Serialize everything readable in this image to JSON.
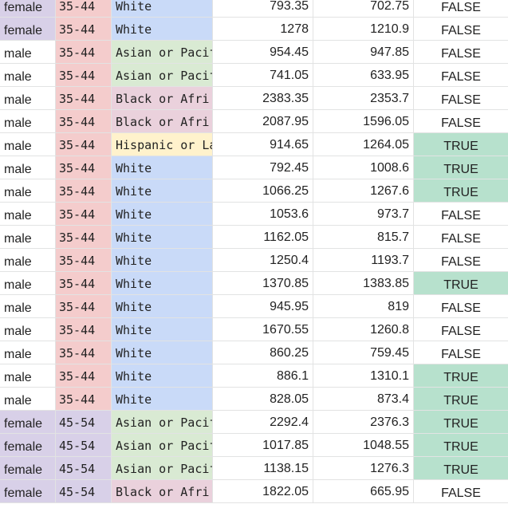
{
  "colors": {
    "female": "#d8d0e8",
    "male": "#ffffff",
    "age_35_44": "#f4cccc",
    "age_45_54": "#d8d0e8",
    "race_White": "#c9daf8",
    "race_Asian": "#d9ead3",
    "race_Black": "#ead1dc",
    "race_Hispanic": "#fff2cc",
    "true_fill": "#b7e1cd"
  },
  "rows": [
    {
      "gender": "female",
      "age": "35-44",
      "race": "White",
      "race_key": "White",
      "v1": "793.35",
      "v2": "702.75",
      "flag": "FALSE"
    },
    {
      "gender": "female",
      "age": "35-44",
      "race": "White",
      "race_key": "White",
      "v1": "1278",
      "v2": "1210.9",
      "flag": "FALSE"
    },
    {
      "gender": "male",
      "age": "35-44",
      "race": "Asian or Pacif",
      "race_key": "Asian",
      "v1": "954.45",
      "v2": "947.85",
      "flag": "FALSE"
    },
    {
      "gender": "male",
      "age": "35-44",
      "race": "Asian or Pacif",
      "race_key": "Asian",
      "v1": "741.05",
      "v2": "633.95",
      "flag": "FALSE"
    },
    {
      "gender": "male",
      "age": "35-44",
      "race": "Black or Afri",
      "race_key": "Black",
      "v1": "2383.35",
      "v2": "2353.7",
      "flag": "FALSE"
    },
    {
      "gender": "male",
      "age": "35-44",
      "race": "Black or Afri",
      "race_key": "Black",
      "v1": "2087.95",
      "v2": "1596.05",
      "flag": "FALSE"
    },
    {
      "gender": "male",
      "age": "35-44",
      "race": "Hispanic or La",
      "race_key": "Hispanic",
      "v1": "914.65",
      "v2": "1264.05",
      "flag": "TRUE"
    },
    {
      "gender": "male",
      "age": "35-44",
      "race": "White",
      "race_key": "White",
      "v1": "792.45",
      "v2": "1008.6",
      "flag": "TRUE"
    },
    {
      "gender": "male",
      "age": "35-44",
      "race": "White",
      "race_key": "White",
      "v1": "1066.25",
      "v2": "1267.6",
      "flag": "TRUE"
    },
    {
      "gender": "male",
      "age": "35-44",
      "race": "White",
      "race_key": "White",
      "v1": "1053.6",
      "v2": "973.7",
      "flag": "FALSE"
    },
    {
      "gender": "male",
      "age": "35-44",
      "race": "White",
      "race_key": "White",
      "v1": "1162.05",
      "v2": "815.7",
      "flag": "FALSE"
    },
    {
      "gender": "male",
      "age": "35-44",
      "race": "White",
      "race_key": "White",
      "v1": "1250.4",
      "v2": "1193.7",
      "flag": "FALSE"
    },
    {
      "gender": "male",
      "age": "35-44",
      "race": "White",
      "race_key": "White",
      "v1": "1370.85",
      "v2": "1383.85",
      "flag": "TRUE"
    },
    {
      "gender": "male",
      "age": "35-44",
      "race": "White",
      "race_key": "White",
      "v1": "945.95",
      "v2": "819",
      "flag": "FALSE"
    },
    {
      "gender": "male",
      "age": "35-44",
      "race": "White",
      "race_key": "White",
      "v1": "1670.55",
      "v2": "1260.8",
      "flag": "FALSE"
    },
    {
      "gender": "male",
      "age": "35-44",
      "race": "White",
      "race_key": "White",
      "v1": "860.25",
      "v2": "759.45",
      "flag": "FALSE"
    },
    {
      "gender": "male",
      "age": "35-44",
      "race": "White",
      "race_key": "White",
      "v1": "886.1",
      "v2": "1310.1",
      "flag": "TRUE"
    },
    {
      "gender": "male",
      "age": "35-44",
      "race": "White",
      "race_key": "White",
      "v1": "828.05",
      "v2": "873.4",
      "flag": "TRUE"
    },
    {
      "gender": "female",
      "age": "45-54",
      "race": "Asian or Pacif",
      "race_key": "Asian",
      "v1": "2292.4",
      "v2": "2376.3",
      "flag": "TRUE"
    },
    {
      "gender": "female",
      "age": "45-54",
      "race": "Asian or Pacif",
      "race_key": "Asian",
      "v1": "1017.85",
      "v2": "1048.55",
      "flag": "TRUE"
    },
    {
      "gender": "female",
      "age": "45-54",
      "race": "Asian or Pacif",
      "race_key": "Asian",
      "v1": "1138.15",
      "v2": "1276.3",
      "flag": "TRUE"
    },
    {
      "gender": "female",
      "age": "45-54",
      "race": "Black or Afri",
      "race_key": "Black",
      "v1": "1822.05",
      "v2": "665.95",
      "flag": "FALSE"
    }
  ]
}
